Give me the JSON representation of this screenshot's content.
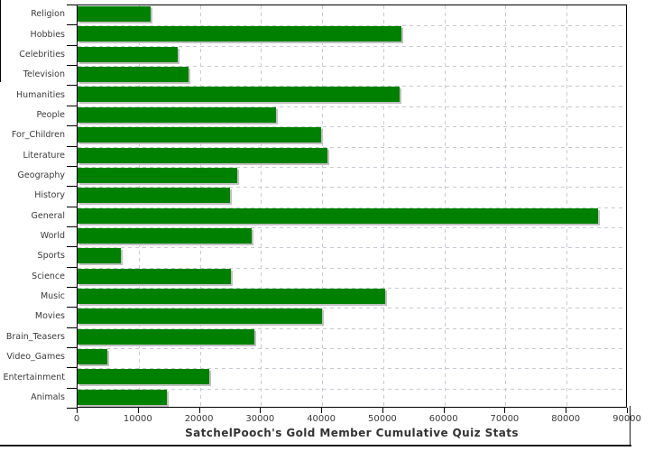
{
  "chart_data": {
    "type": "bar",
    "orientation": "horizontal",
    "title": "SatchelPooch's Gold Member Cumulative Quiz Stats",
    "categories": [
      "Religion",
      "Hobbies",
      "Celebrities",
      "Television",
      "Humanities",
      "People",
      "For_Children",
      "Literature",
      "Geography",
      "History",
      "General",
      "World",
      "Sports",
      "Science",
      "Music",
      "Movies",
      "Brain_Teasers",
      "Video_Games",
      "Entertainment",
      "Animals"
    ],
    "values": [
      11900,
      53100,
      16400,
      18100,
      52800,
      32500,
      39900,
      40900,
      26100,
      25000,
      85300,
      28500,
      7100,
      25100,
      50400,
      40100,
      28900,
      4800,
      21600,
      14600
    ],
    "xlabel": "",
    "ylabel": "",
    "xlim": [
      0,
      90000
    ],
    "x_ticks": [
      0,
      10000,
      20000,
      30000,
      40000,
      50000,
      60000,
      70000,
      80000,
      90000
    ],
    "grid": {
      "vertical": true,
      "horizontal": true,
      "style": "dashed"
    },
    "legend": null,
    "colors": {
      "bar": "#008000",
      "bar_shadow": "#c0c0c0",
      "grid": "#c7cad1",
      "text": "#3a3a3a",
      "frame": "#000000",
      "background": "#ffffff"
    }
  }
}
